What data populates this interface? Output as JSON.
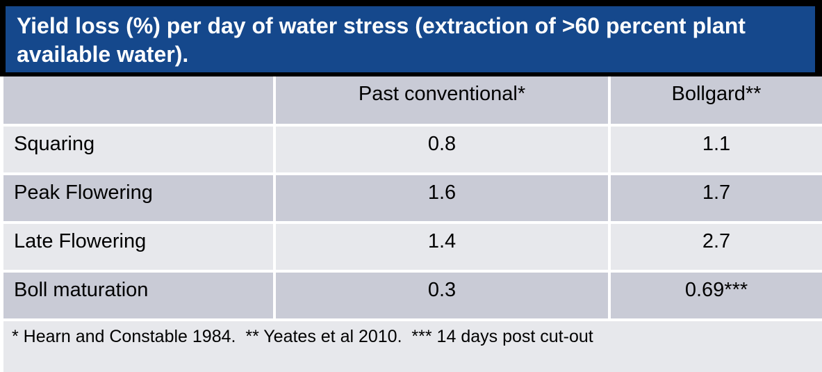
{
  "title": {
    "text": "Yield loss (%) per day of water stress (extraction of >60 percent plant available water)."
  },
  "table": {
    "columns": [
      "",
      "Past conventional*",
      "Bollgard**"
    ],
    "rows": [
      [
        "Squaring",
        "0.8",
        "1.1"
      ],
      [
        "Peak Flowering",
        "1.6",
        "1.7"
      ],
      [
        "Late Flowering",
        "1.4",
        "2.7"
      ],
      [
        "Boll maturation",
        "0.3",
        "0.69***"
      ]
    ],
    "footnote": "* Hearn and Constable 1984.  ** Yeates et al 2010.  *** 14 days post cut-out"
  },
  "colors": {
    "title_background": "#15488C",
    "title_text": "#FFFFFF",
    "row_dark": "#C9CBD6",
    "row_light": "#E7E8EC",
    "grid_lines": "#FFFFFF",
    "page_background": "#000000",
    "cell_text": "#000000"
  },
  "chart_data": {
    "type": "table",
    "title": "Yield loss (%) per day of water stress (extraction of >60 percent plant available water).",
    "categories": [
      "Squaring",
      "Peak Flowering",
      "Late Flowering",
      "Boll maturation"
    ],
    "series": [
      {
        "name": "Past conventional*",
        "values": [
          0.8,
          1.6,
          1.4,
          0.3
        ]
      },
      {
        "name": "Bollgard**",
        "values": [
          1.1,
          1.7,
          2.7,
          0.69
        ]
      }
    ],
    "annotations": [
      "* Hearn and Constable 1984.",
      "** Yeates et al 2010.",
      "*** 14 days post cut-out (applies to Bollgard Boll maturation value 0.69)"
    ]
  }
}
